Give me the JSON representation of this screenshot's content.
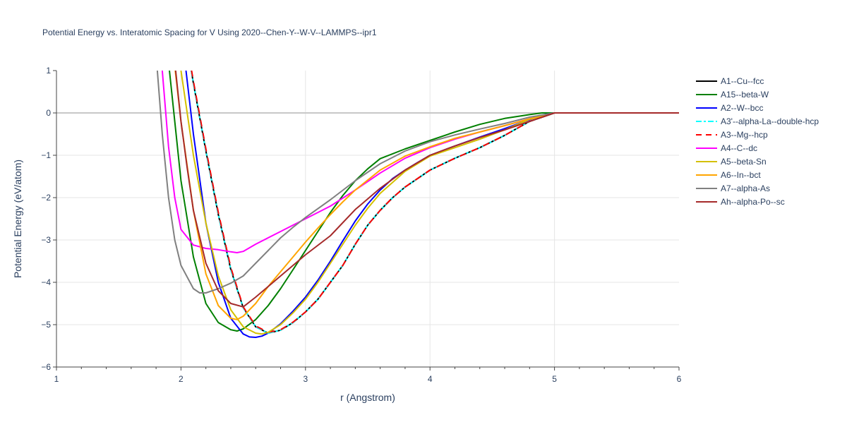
{
  "chart_data": {
    "type": "line",
    "title": "Potential Energy vs. Interatomic Spacing for V Using 2020--Chen-Y--W-V--LAMMPS--ipr1",
    "xlabel": "r (Angstrom)",
    "ylabel": "Potential Energy (eV/atom)",
    "xlim": [
      1,
      6
    ],
    "ylim": [
      -6,
      1
    ],
    "xticks": [
      "1",
      "2",
      "3",
      "4",
      "5",
      "6"
    ],
    "yticks": [
      "1",
      "0",
      "−1",
      "−2",
      "−3",
      "−4",
      "−5",
      "−6"
    ],
    "grid": true,
    "legend_position": "right",
    "series": [
      {
        "name": "A1--Cu--fcc",
        "color": "#000000",
        "dash": "solid",
        "x": [
          2.05,
          2.1,
          2.2,
          2.3,
          2.4,
          2.5,
          2.6,
          2.7,
          2.8,
          2.9,
          3.0,
          3.1,
          3.2,
          3.3,
          3.4,
          3.5,
          3.6,
          3.7,
          3.8,
          3.9,
          4.0,
          4.2,
          4.4,
          4.6,
          4.8,
          5.0,
          5.5,
          6.0
        ],
        "y": [
          1.6,
          0.7,
          -0.9,
          -2.4,
          -3.7,
          -4.6,
          -5.05,
          -5.2,
          -5.13,
          -4.95,
          -4.7,
          -4.4,
          -4.0,
          -3.6,
          -3.1,
          -2.65,
          -2.3,
          -2.0,
          -1.75,
          -1.55,
          -1.35,
          -1.07,
          -0.82,
          -0.53,
          -0.2,
          0.0,
          0.0,
          0.0
        ]
      },
      {
        "name": "A15--beta-W",
        "color": "#008000",
        "dash": "solid",
        "x": [
          1.9,
          1.95,
          2.0,
          2.1,
          2.2,
          2.3,
          2.4,
          2.45,
          2.5,
          2.6,
          2.7,
          2.8,
          2.9,
          3.0,
          3.1,
          3.2,
          3.3,
          3.4,
          3.5,
          3.6,
          3.8,
          4.0,
          4.2,
          4.4,
          4.6,
          4.8,
          4.9,
          5.0,
          5.5,
          6.0
        ],
        "y": [
          1.2,
          -0.2,
          -1.6,
          -3.4,
          -4.5,
          -4.95,
          -5.12,
          -5.15,
          -5.1,
          -4.88,
          -4.55,
          -4.15,
          -3.7,
          -3.25,
          -2.8,
          -2.35,
          -1.95,
          -1.6,
          -1.32,
          -1.08,
          -0.85,
          -0.65,
          -0.45,
          -0.27,
          -0.13,
          -0.04,
          0.0,
          0.0,
          0.0,
          0.0
        ]
      },
      {
        "name": "A2--W--bcc",
        "color": "#0000ff",
        "dash": "solid",
        "x": [
          2.04,
          2.1,
          2.2,
          2.3,
          2.4,
          2.5,
          2.55,
          2.6,
          2.65,
          2.7,
          2.8,
          2.9,
          3.0,
          3.1,
          3.2,
          3.3,
          3.4,
          3.5,
          3.6,
          3.7,
          3.8,
          3.9,
          4.0,
          4.2,
          4.4,
          4.6,
          4.8,
          4.9,
          5.0,
          5.5,
          6.0
        ],
        "y": [
          1.0,
          -0.5,
          -2.6,
          -4.0,
          -4.85,
          -5.22,
          -5.29,
          -5.3,
          -5.27,
          -5.2,
          -4.98,
          -4.68,
          -4.35,
          -3.95,
          -3.5,
          -3.02,
          -2.55,
          -2.15,
          -1.82,
          -1.55,
          -1.35,
          -1.17,
          -1.0,
          -0.78,
          -0.57,
          -0.37,
          -0.16,
          -0.05,
          0.0,
          0.0,
          0.0
        ]
      },
      {
        "name": "A3'--alpha-La--double-hcp",
        "color": "#00ffff",
        "dash": "dashdot",
        "x": [
          2.05,
          2.1,
          2.2,
          2.3,
          2.4,
          2.5,
          2.6,
          2.7,
          2.8,
          2.9,
          3.0,
          3.1,
          3.2,
          3.3,
          3.4,
          3.5,
          3.6,
          3.7,
          3.8,
          3.9,
          4.0,
          4.2,
          4.4,
          4.6,
          4.8,
          5.0,
          5.5,
          6.0
        ],
        "y": [
          1.6,
          0.7,
          -0.9,
          -2.4,
          -3.7,
          -4.6,
          -5.05,
          -5.2,
          -5.13,
          -4.95,
          -4.7,
          -4.4,
          -4.0,
          -3.6,
          -3.1,
          -2.65,
          -2.3,
          -2.0,
          -1.75,
          -1.55,
          -1.35,
          -1.07,
          -0.82,
          -0.53,
          -0.2,
          0.0,
          0.0,
          0.0
        ]
      },
      {
        "name": "A3--Mg--hcp",
        "color": "#ff0000",
        "dash": "dash",
        "x": [
          2.05,
          2.1,
          2.2,
          2.3,
          2.4,
          2.5,
          2.6,
          2.7,
          2.8,
          2.9,
          3.0,
          3.1,
          3.2,
          3.3,
          3.4,
          3.5,
          3.6,
          3.7,
          3.8,
          3.9,
          4.0,
          4.2,
          4.4,
          4.6,
          4.8,
          5.0,
          5.5,
          6.0
        ],
        "y": [
          1.6,
          0.75,
          -0.85,
          -2.35,
          -3.65,
          -4.58,
          -5.03,
          -5.18,
          -5.12,
          -4.94,
          -4.7,
          -4.4,
          -4.0,
          -3.6,
          -3.1,
          -2.65,
          -2.3,
          -2.0,
          -1.75,
          -1.55,
          -1.35,
          -1.07,
          -0.82,
          -0.53,
          -0.2,
          0.0,
          0.0,
          0.0
        ]
      },
      {
        "name": "A4--C--dc",
        "color": "#ff00ff",
        "dash": "solid",
        "x": [
          1.85,
          1.9,
          1.95,
          2.0,
          2.1,
          2.2,
          2.3,
          2.4,
          2.45,
          2.5,
          2.6,
          2.8,
          3.0,
          3.2,
          3.4,
          3.6,
          3.8,
          4.0,
          4.2,
          4.4,
          4.6,
          4.8,
          5.0,
          5.5,
          6.0
        ],
        "y": [
          1.0,
          -0.8,
          -2.0,
          -2.75,
          -3.12,
          -3.2,
          -3.23,
          -3.28,
          -3.3,
          -3.27,
          -3.1,
          -2.8,
          -2.5,
          -2.2,
          -1.82,
          -1.42,
          -1.07,
          -0.82,
          -0.62,
          -0.45,
          -0.3,
          -0.14,
          0.0,
          0.0,
          0.0
        ]
      },
      {
        "name": "A5--beta-Sn",
        "color": "#d4c000",
        "dash": "solid",
        "x": [
          2.0,
          2.05,
          2.1,
          2.2,
          2.3,
          2.4,
          2.5,
          2.6,
          2.65,
          2.7,
          2.8,
          2.9,
          3.0,
          3.1,
          3.2,
          3.3,
          3.4,
          3.5,
          3.6,
          3.8,
          4.0,
          4.2,
          4.4,
          4.6,
          4.8,
          5.0,
          5.5,
          6.0
        ],
        "y": [
          1.0,
          0.0,
          -1.0,
          -2.6,
          -3.85,
          -4.65,
          -5.05,
          -5.2,
          -5.22,
          -5.18,
          -5.0,
          -4.72,
          -4.4,
          -4.0,
          -3.55,
          -3.1,
          -2.65,
          -2.25,
          -1.9,
          -1.38,
          -1.02,
          -0.82,
          -0.62,
          -0.4,
          -0.15,
          0.0,
          0.0,
          0.0
        ]
      },
      {
        "name": "A6--In--bct",
        "color": "#ffa500",
        "dash": "solid",
        "x": [
          1.95,
          2.0,
          2.1,
          2.2,
          2.3,
          2.4,
          2.45,
          2.5,
          2.6,
          2.7,
          2.8,
          2.9,
          3.0,
          3.1,
          3.2,
          3.3,
          3.4,
          3.6,
          3.8,
          4.0,
          4.2,
          4.4,
          4.6,
          4.8,
          5.0,
          5.5,
          6.0
        ],
        "y": [
          1.1,
          -0.2,
          -2.3,
          -3.8,
          -4.55,
          -4.85,
          -4.88,
          -4.8,
          -4.5,
          -4.1,
          -3.75,
          -3.4,
          -3.05,
          -2.72,
          -2.4,
          -2.1,
          -1.82,
          -1.35,
          -1.02,
          -0.8,
          -0.6,
          -0.45,
          -0.3,
          -0.14,
          0.0,
          0.0,
          0.0
        ]
      },
      {
        "name": "A7--alpha-As",
        "color": "#808080",
        "dash": "solid",
        "x": [
          1.81,
          1.85,
          1.9,
          1.95,
          2.0,
          2.1,
          2.15,
          2.2,
          2.3,
          2.4,
          2.5,
          2.6,
          2.7,
          2.8,
          2.9,
          3.0,
          3.2,
          3.4,
          3.6,
          3.8,
          4.0,
          4.2,
          4.4,
          4.6,
          4.8,
          5.0,
          5.5,
          6.0
        ],
        "y": [
          1.0,
          -0.5,
          -2.0,
          -3.0,
          -3.6,
          -4.15,
          -4.25,
          -4.25,
          -4.15,
          -4.02,
          -3.85,
          -3.55,
          -3.25,
          -2.95,
          -2.7,
          -2.47,
          -2.05,
          -1.6,
          -1.2,
          -0.9,
          -0.68,
          -0.52,
          -0.38,
          -0.25,
          -0.1,
          0.0,
          0.0,
          0.0
        ]
      },
      {
        "name": "Ah--alpha-Po--sc",
        "color": "#a52a2a",
        "dash": "solid",
        "x": [
          1.95,
          2.0,
          2.05,
          2.1,
          2.2,
          2.3,
          2.4,
          2.5,
          2.6,
          2.7,
          2.8,
          2.9,
          3.0,
          3.2,
          3.4,
          3.6,
          3.8,
          4.0,
          4.2,
          4.4,
          4.6,
          4.8,
          5.0,
          5.5,
          6.0
        ],
        "y": [
          1.2,
          -0.2,
          -1.3,
          -2.3,
          -3.55,
          -4.2,
          -4.5,
          -4.58,
          -4.35,
          -4.1,
          -3.85,
          -3.6,
          -3.35,
          -2.9,
          -2.28,
          -1.78,
          -1.35,
          -1.0,
          -0.78,
          -0.58,
          -0.4,
          -0.2,
          0.0,
          0.0,
          0.0
        ]
      }
    ]
  }
}
